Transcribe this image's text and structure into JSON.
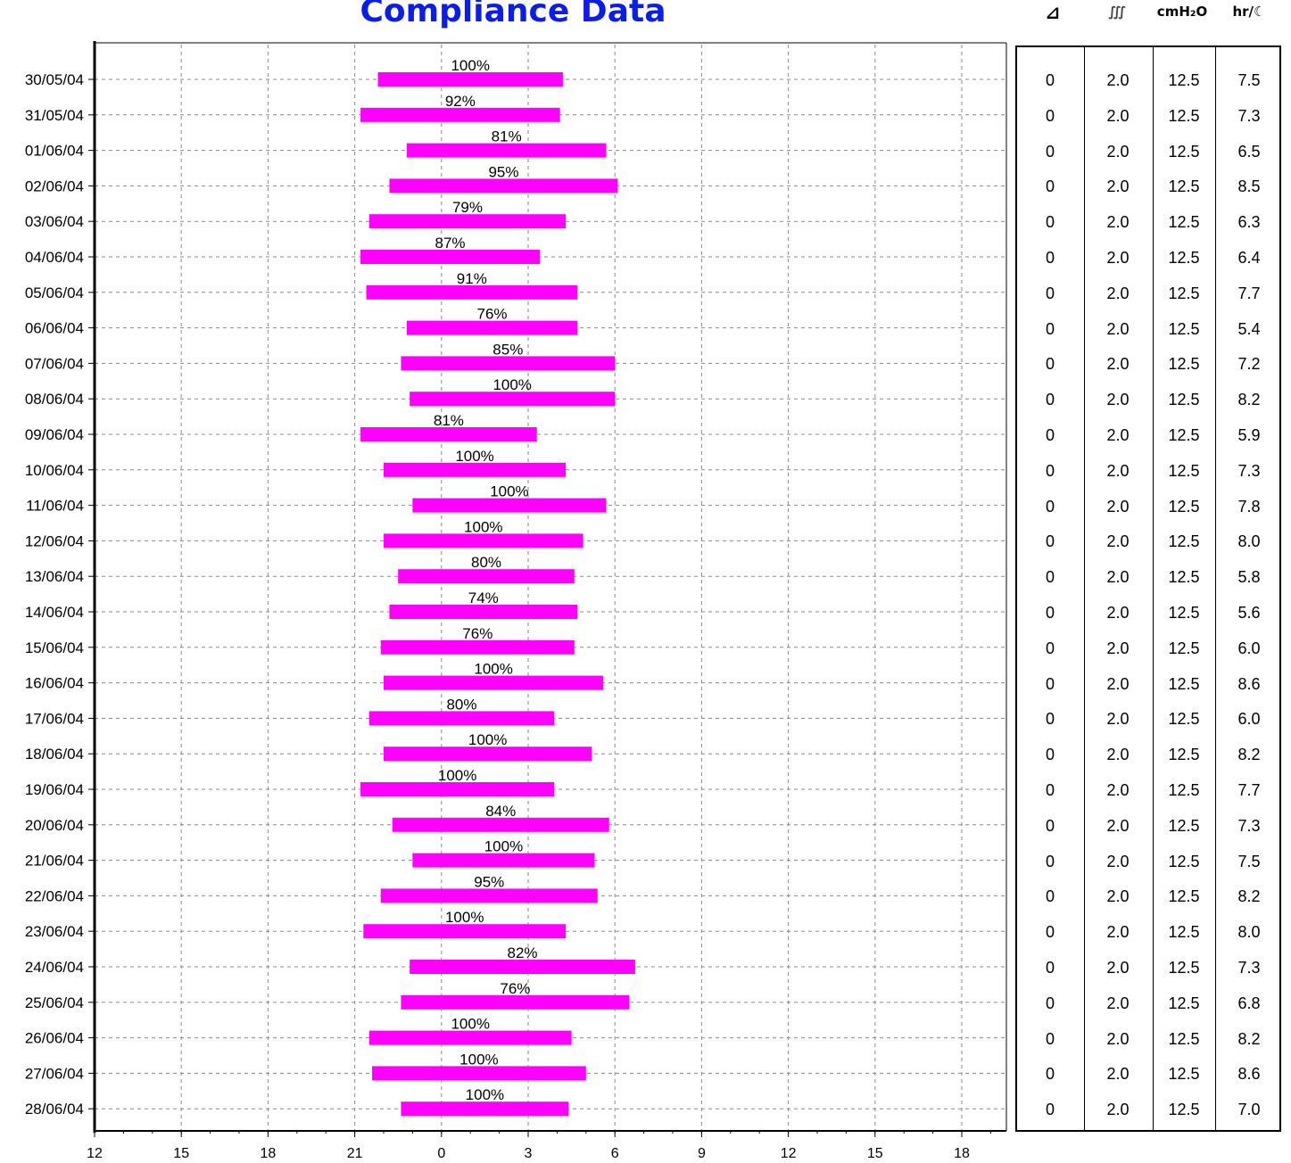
{
  "chart_data": {
    "type": "bar",
    "title": "Compliance Data",
    "x_tick_labels": [
      "12",
      "15",
      "18",
      "21",
      "0",
      "3",
      "6",
      "9",
      "12",
      "15",
      "18"
    ],
    "x_start_hour": 12,
    "grid": true,
    "rows": [
      {
        "date": "30/05/04",
        "start": 21.8,
        "end": 4.2,
        "compliance": "100%"
      },
      {
        "date": "31/05/04",
        "start": 21.2,
        "end": 4.1,
        "compliance": "92%"
      },
      {
        "date": "01/06/04",
        "start": 22.8,
        "end": 5.7,
        "compliance": "81%"
      },
      {
        "date": "02/06/04",
        "start": 22.2,
        "end": 6.1,
        "compliance": "95%"
      },
      {
        "date": "03/06/04",
        "start": 21.5,
        "end": 4.3,
        "compliance": "79%"
      },
      {
        "date": "04/06/04",
        "start": 21.2,
        "end": 3.4,
        "compliance": "87%"
      },
      {
        "date": "05/06/04",
        "start": 21.4,
        "end": 4.7,
        "compliance": "91%"
      },
      {
        "date": "06/06/04",
        "start": 22.8,
        "end": 4.7,
        "compliance": "76%"
      },
      {
        "date": "07/06/04",
        "start": 22.6,
        "end": 6.0,
        "compliance": "85%"
      },
      {
        "date": "08/06/04",
        "start": 22.9,
        "end": 6.0,
        "compliance": "100%"
      },
      {
        "date": "09/06/04",
        "start": 21.2,
        "end": 3.3,
        "compliance": "81%"
      },
      {
        "date": "10/06/04",
        "start": 22.0,
        "end": 4.3,
        "compliance": "100%"
      },
      {
        "date": "11/06/04",
        "start": 23.0,
        "end": 5.7,
        "compliance": "100%"
      },
      {
        "date": "12/06/04",
        "start": 22.0,
        "end": 4.9,
        "compliance": "100%"
      },
      {
        "date": "13/06/04",
        "start": 22.5,
        "end": 4.6,
        "compliance": "80%"
      },
      {
        "date": "14/06/04",
        "start": 22.2,
        "end": 4.7,
        "compliance": "74%"
      },
      {
        "date": "15/06/04",
        "start": 21.9,
        "end": 4.6,
        "compliance": "76%"
      },
      {
        "date": "16/06/04",
        "start": 22.0,
        "end": 5.6,
        "compliance": "100%"
      },
      {
        "date": "17/06/04",
        "start": 21.5,
        "end": 3.9,
        "compliance": "80%"
      },
      {
        "date": "18/06/04",
        "start": 22.0,
        "end": 5.2,
        "compliance": "100%"
      },
      {
        "date": "19/06/04",
        "start": 21.2,
        "end": 3.9,
        "compliance": "100%"
      },
      {
        "date": "20/06/04",
        "start": 22.3,
        "end": 5.8,
        "compliance": "84%"
      },
      {
        "date": "21/06/04",
        "start": 23.0,
        "end": 5.3,
        "compliance": "100%"
      },
      {
        "date": "22/06/04",
        "start": 21.9,
        "end": 5.4,
        "compliance": "95%"
      },
      {
        "date": "23/06/04",
        "start": 21.3,
        "end": 4.3,
        "compliance": "100%"
      },
      {
        "date": "24/06/04",
        "start": 22.9,
        "end": 6.7,
        "compliance": "82%"
      },
      {
        "date": "25/06/04",
        "start": 22.6,
        "end": 6.5,
        "compliance": "76%"
      },
      {
        "date": "26/06/04",
        "start": 21.5,
        "end": 4.5,
        "compliance": "100%"
      },
      {
        "date": "27/06/04",
        "start": 21.6,
        "end": 5.0,
        "compliance": "100%"
      },
      {
        "date": "28/06/04",
        "start": 22.6,
        "end": 4.4,
        "compliance": "100%"
      }
    ],
    "bar_color": "#ff00ff",
    "title_color": "#0a1ee8"
  },
  "table": {
    "columns": [
      {
        "label": "⊿",
        "icon": "ramp-icon"
      },
      {
        "label": "∭",
        "icon": "humidifier-icon"
      },
      {
        "label": "cmH₂O"
      },
      {
        "label": "hr/☾",
        "icon": "moon-icon"
      }
    ],
    "rows": [
      [
        "0",
        "2.0",
        "12.5",
        "7.5"
      ],
      [
        "0",
        "2.0",
        "12.5",
        "7.3"
      ],
      [
        "0",
        "2.0",
        "12.5",
        "6.5"
      ],
      [
        "0",
        "2.0",
        "12.5",
        "8.5"
      ],
      [
        "0",
        "2.0",
        "12.5",
        "6.3"
      ],
      [
        "0",
        "2.0",
        "12.5",
        "6.4"
      ],
      [
        "0",
        "2.0",
        "12.5",
        "7.7"
      ],
      [
        "0",
        "2.0",
        "12.5",
        "5.4"
      ],
      [
        "0",
        "2.0",
        "12.5",
        "7.2"
      ],
      [
        "0",
        "2.0",
        "12.5",
        "8.2"
      ],
      [
        "0",
        "2.0",
        "12.5",
        "5.9"
      ],
      [
        "0",
        "2.0",
        "12.5",
        "7.3"
      ],
      [
        "0",
        "2.0",
        "12.5",
        "7.8"
      ],
      [
        "0",
        "2.0",
        "12.5",
        "8.0"
      ],
      [
        "0",
        "2.0",
        "12.5",
        "5.8"
      ],
      [
        "0",
        "2.0",
        "12.5",
        "5.6"
      ],
      [
        "0",
        "2.0",
        "12.5",
        "6.0"
      ],
      [
        "0",
        "2.0",
        "12.5",
        "8.6"
      ],
      [
        "0",
        "2.0",
        "12.5",
        "6.0"
      ],
      [
        "0",
        "2.0",
        "12.5",
        "8.2"
      ],
      [
        "0",
        "2.0",
        "12.5",
        "7.7"
      ],
      [
        "0",
        "2.0",
        "12.5",
        "7.3"
      ],
      [
        "0",
        "2.0",
        "12.5",
        "7.5"
      ],
      [
        "0",
        "2.0",
        "12.5",
        "8.2"
      ],
      [
        "0",
        "2.0",
        "12.5",
        "8.0"
      ],
      [
        "0",
        "2.0",
        "12.5",
        "7.3"
      ],
      [
        "0",
        "2.0",
        "12.5",
        "6.8"
      ],
      [
        "0",
        "2.0",
        "12.5",
        "8.2"
      ],
      [
        "0",
        "2.0",
        "12.5",
        "8.6"
      ],
      [
        "0",
        "2.0",
        "12.5",
        "7.0"
      ]
    ]
  }
}
